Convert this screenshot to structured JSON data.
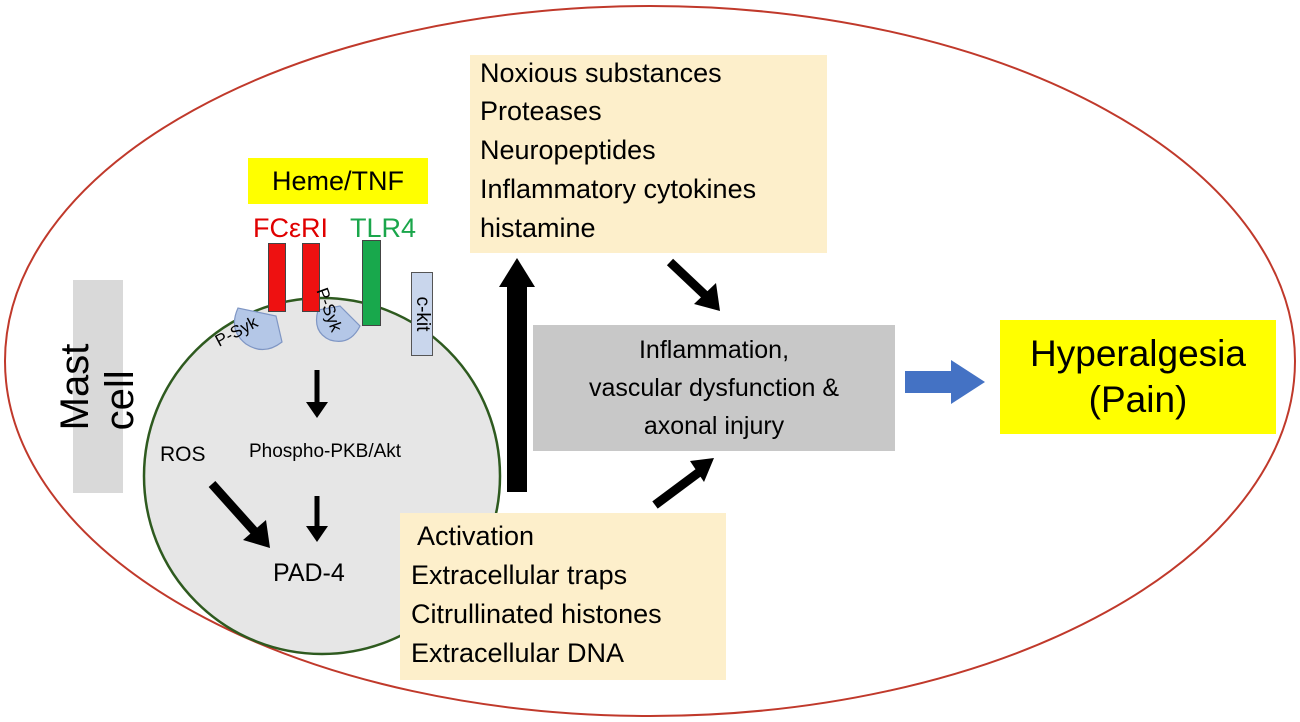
{
  "cell": {
    "label": "Mast cell",
    "stimulus": "Heme/TNF",
    "receptors": [
      {
        "label": "FCεRI",
        "color": "#e00000"
      },
      {
        "label": "TLR4",
        "color": "#1aa64b"
      },
      {
        "label": "c-kit",
        "color": "#000000"
      }
    ],
    "kinase_labels": [
      "P-Syk",
      "P-Syk"
    ],
    "signaling": "Phospho-PKB/Akt",
    "ros": "ROS",
    "enzyme": "PAD-4"
  },
  "released_mediators": [
    "Noxious substances",
    "Proteases",
    "Neuropeptides",
    "Inflammatory cytokines",
    "histamine"
  ],
  "activation_products": [
    "Activation",
    "Extracellular traps",
    "Citrullinated histones",
    "Extracellular DNA"
  ],
  "outcome": {
    "lines": [
      "Inflammation,",
      "vascular dysfunction &",
      "axonal injury"
    ]
  },
  "result": {
    "lines": [
      "Hyperalgesia",
      "(Pain)"
    ]
  },
  "colors": {
    "ellipse": "#c0392b",
    "cell_fill": "#e6e6e6",
    "cell_outline": "#2e5a1f",
    "box_fill": "#fdefcb",
    "highlight": "#ffff00",
    "gray_box": "#c8c8c8",
    "blue_arrow": "#4472c4"
  }
}
